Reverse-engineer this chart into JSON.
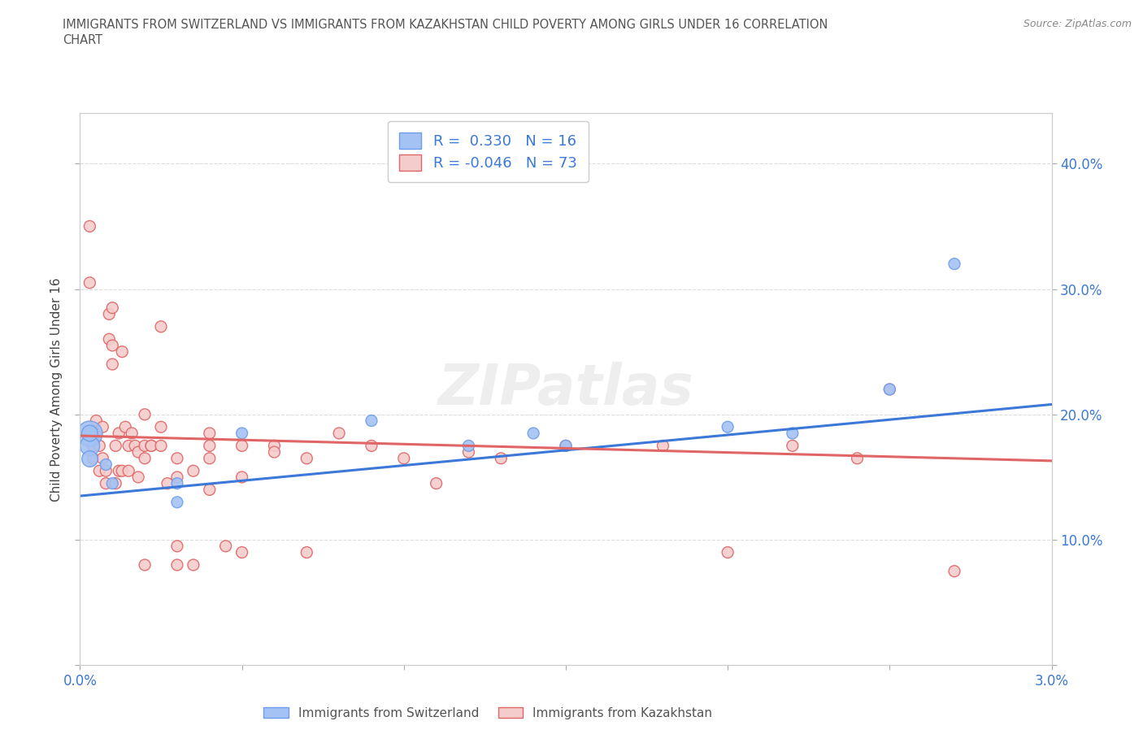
{
  "title_line1": "IMMIGRANTS FROM SWITZERLAND VS IMMIGRANTS FROM KAZAKHSTAN CHILD POVERTY AMONG GIRLS UNDER 16 CORRELATION",
  "title_line2": "CHART",
  "source_text": "Source: ZipAtlas.com",
  "ylabel": "Child Poverty Among Girls Under 16",
  "xlim": [
    0.0,
    0.03
  ],
  "ylim": [
    0.0,
    0.44
  ],
  "color_swiss": "#a4c2f4",
  "color_kazakh": "#f4cccc",
  "color_swiss_edge": "#6d9eeb",
  "color_kazakh_edge": "#e06666",
  "color_swiss_line": "#3c78d8",
  "color_kazakh_line": "#e06666",
  "R_swiss": 0.33,
  "N_swiss": 16,
  "R_kazakh": -0.046,
  "N_kazakh": 73,
  "swiss_x": [
    0.0003,
    0.0008,
    0.001,
    0.003,
    0.003,
    0.005,
    0.009,
    0.012,
    0.014,
    0.015,
    0.02,
    0.022,
    0.025,
    0.027
  ],
  "swiss_y": [
    0.185,
    0.16,
    0.145,
    0.13,
    0.145,
    0.185,
    0.195,
    0.175,
    0.185,
    0.175,
    0.19,
    0.185,
    0.22,
    0.32
  ],
  "swiss_s": [
    200,
    100,
    100,
    100,
    100,
    100,
    100,
    100,
    100,
    100,
    100,
    100,
    100,
    100
  ],
  "swiss_big_x": [
    0.0003
  ],
  "swiss_big_y": [
    0.185
  ],
  "swiss_big_s": [
    500
  ],
  "kazakh_x": [
    0.0003,
    0.0003,
    0.0003,
    0.0004,
    0.0004,
    0.0005,
    0.0005,
    0.0006,
    0.0006,
    0.0007,
    0.0007,
    0.0008,
    0.0008,
    0.0009,
    0.0009,
    0.001,
    0.001,
    0.001,
    0.0011,
    0.0011,
    0.0012,
    0.0012,
    0.0013,
    0.0013,
    0.0014,
    0.0015,
    0.0015,
    0.0016,
    0.0017,
    0.0018,
    0.0018,
    0.002,
    0.002,
    0.002,
    0.002,
    0.0022,
    0.0022,
    0.0025,
    0.0025,
    0.0025,
    0.0027,
    0.003,
    0.003,
    0.003,
    0.003,
    0.0035,
    0.0035,
    0.004,
    0.004,
    0.004,
    0.004,
    0.0045,
    0.005,
    0.005,
    0.005,
    0.006,
    0.006,
    0.007,
    0.007,
    0.008,
    0.009,
    0.01,
    0.011,
    0.012,
    0.013,
    0.015,
    0.018,
    0.02,
    0.022,
    0.024,
    0.025,
    0.027
  ],
  "kazakh_y": [
    0.35,
    0.305,
    0.185,
    0.175,
    0.165,
    0.195,
    0.185,
    0.155,
    0.175,
    0.19,
    0.165,
    0.145,
    0.155,
    0.28,
    0.26,
    0.285,
    0.255,
    0.24,
    0.175,
    0.145,
    0.155,
    0.185,
    0.25,
    0.155,
    0.19,
    0.175,
    0.155,
    0.185,
    0.175,
    0.17,
    0.15,
    0.2,
    0.175,
    0.165,
    0.08,
    0.175,
    0.175,
    0.27,
    0.19,
    0.175,
    0.145,
    0.165,
    0.095,
    0.15,
    0.08,
    0.155,
    0.08,
    0.185,
    0.165,
    0.14,
    0.175,
    0.095,
    0.175,
    0.09,
    0.15,
    0.175,
    0.17,
    0.165,
    0.09,
    0.185,
    0.175,
    0.165,
    0.145,
    0.17,
    0.165,
    0.175,
    0.175,
    0.09,
    0.175,
    0.165,
    0.22,
    0.075
  ],
  "kazakh_s": [
    100,
    100,
    100,
    100,
    100,
    100,
    100,
    100,
    100,
    100,
    100,
    100,
    100,
    100,
    100,
    100,
    100,
    100,
    100,
    100,
    100,
    100,
    100,
    100,
    100,
    100,
    100,
    100,
    100,
    100,
    100,
    100,
    100,
    100,
    100,
    100,
    100,
    100,
    100,
    100,
    100,
    100,
    100,
    100,
    100,
    100,
    100,
    100,
    100,
    100,
    100,
    100,
    100,
    100,
    100,
    100,
    100,
    100,
    100,
    100,
    100,
    100,
    100,
    100,
    100,
    100,
    100,
    100,
    100,
    100,
    100,
    100
  ],
  "swiss_trend_x": [
    0.0,
    0.03
  ],
  "swiss_trend_y": [
    0.135,
    0.208
  ],
  "kazakh_trend_x": [
    0.0,
    0.03
  ],
  "kazakh_trend_y": [
    0.183,
    0.163
  ],
  "legend_label_swiss": "Immigrants from Switzerland",
  "legend_label_kazakh": "Immigrants from Kazakhstan",
  "watermark": "ZIPatlas",
  "grid_color": "#dddddd",
  "background_color": "#ffffff",
  "tick_color": "#3c78d8",
  "title_color": "#555555",
  "source_color": "#888888",
  "ylabel_color": "#444444"
}
